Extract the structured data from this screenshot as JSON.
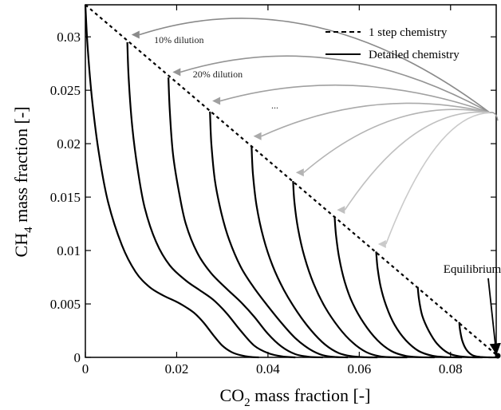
{
  "chart_data": {
    "type": "line",
    "xlabel": {
      "main": "CO",
      "sub": "2",
      "rest": " mass fraction [-]"
    },
    "ylabel": {
      "main": "CH",
      "sub": "4",
      "rest": " mass fraction [-]"
    },
    "xlim": [
      0,
      0.09
    ],
    "ylim": [
      0,
      0.033
    ],
    "xticks": [
      0,
      0.02,
      0.04,
      0.06,
      0.08
    ],
    "xtick_labels": [
      "0",
      "0.02",
      "0.04",
      "0.06",
      "0.08"
    ],
    "yticks": [
      0,
      0.005,
      0.01,
      0.015,
      0.02,
      0.025,
      0.03
    ],
    "ytick_labels": [
      "0",
      "0.005",
      "0.01",
      "0.015",
      "0.02",
      "0.025",
      "0.03"
    ],
    "grid": false,
    "legend": {
      "position": "top-right",
      "entries": [
        {
          "label": "1 step chemistry",
          "style": "dashed"
        },
        {
          "label": "Detailed chemistry",
          "style": "solid"
        }
      ]
    },
    "series": [
      {
        "style": "dashed",
        "x": [
          0,
          0.0907
        ],
        "y": [
          0.033,
          0
        ]
      },
      {
        "style": "solid",
        "x": [
          0,
          0.0005,
          0.0015,
          0.003,
          0.005,
          0.008,
          0.011,
          0.014,
          0.017,
          0.02,
          0.022,
          0.024,
          0.026,
          0.028,
          0.03,
          0.032,
          0.034,
          0.036,
          0.038
        ],
        "y": [
          0.033,
          0.029,
          0.024,
          0.019,
          0.0145,
          0.0105,
          0.008,
          0.0066,
          0.0058,
          0.0052,
          0.0047,
          0.0041,
          0.0032,
          0.0021,
          0.0011,
          0.0005,
          0.0002,
          5e-05,
          0
        ]
      },
      {
        "style": "solid",
        "x": [
          0.0092,
          0.0095,
          0.0103,
          0.0115,
          0.013,
          0.0155,
          0.0185,
          0.022,
          0.025,
          0.028,
          0.031,
          0.034,
          0.037,
          0.04,
          0.043,
          0.046
        ],
        "y": [
          0.0295,
          0.026,
          0.0215,
          0.0175,
          0.014,
          0.0108,
          0.0086,
          0.0072,
          0.0063,
          0.0054,
          0.0041,
          0.0025,
          0.0011,
          0.0004,
          0.0001,
          0
        ]
      },
      {
        "style": "solid",
        "x": [
          0.0182,
          0.0185,
          0.0192,
          0.0205,
          0.022,
          0.0245,
          0.0275,
          0.031,
          0.034,
          0.037,
          0.04,
          0.043,
          0.046,
          0.049,
          0.052
        ],
        "y": [
          0.0262,
          0.023,
          0.019,
          0.0155,
          0.0125,
          0.0098,
          0.0079,
          0.0064,
          0.0052,
          0.0038,
          0.0022,
          0.001,
          0.0003,
          5e-05,
          0
        ]
      },
      {
        "style": "solid",
        "x": [
          0.0273,
          0.0276,
          0.0284,
          0.0298,
          0.0315,
          0.034,
          0.0368,
          0.0398,
          0.043,
          0.046,
          0.049,
          0.052,
          0.055,
          0.0575
        ],
        "y": [
          0.023,
          0.02,
          0.0165,
          0.0135,
          0.011,
          0.0085,
          0.0066,
          0.0049,
          0.0032,
          0.0018,
          0.0008,
          0.0002,
          3e-05,
          0
        ]
      },
      {
        "style": "solid",
        "x": [
          0.0364,
          0.0367,
          0.0375,
          0.039,
          0.041,
          0.0435,
          0.0465,
          0.0495,
          0.0525,
          0.0555,
          0.0585,
          0.0615,
          0.064
        ],
        "y": [
          0.0198,
          0.0172,
          0.0142,
          0.0112,
          0.0086,
          0.0063,
          0.0042,
          0.0025,
          0.0012,
          0.0004,
          0.0001,
          1e-05,
          0
        ]
      },
      {
        "style": "solid",
        "x": [
          0.0455,
          0.0458,
          0.0466,
          0.048,
          0.05,
          0.0525,
          0.0555,
          0.0585,
          0.0615,
          0.0645,
          0.0675,
          0.0705
        ],
        "y": [
          0.0165,
          0.0145,
          0.012,
          0.0094,
          0.0069,
          0.0047,
          0.0028,
          0.0014,
          0.0005,
          0.0001,
          1e-05,
          0
        ]
      },
      {
        "style": "solid",
        "x": [
          0.0546,
          0.0549,
          0.0556,
          0.0568,
          0.0585,
          0.061,
          0.064,
          0.067,
          0.07,
          0.073,
          0.0765
        ],
        "y": [
          0.0132,
          0.0115,
          0.0093,
          0.0071,
          0.0051,
          0.0032,
          0.0016,
          0.0006,
          0.00015,
          2e-05,
          0
        ]
      },
      {
        "style": "solid",
        "x": [
          0.0637,
          0.064,
          0.0647,
          0.066,
          0.0678,
          0.0702,
          0.073,
          0.076,
          0.079,
          0.0825
        ],
        "y": [
          0.0099,
          0.0084,
          0.0066,
          0.0047,
          0.003,
          0.0016,
          0.0006,
          0.00015,
          2e-05,
          0
        ]
      },
      {
        "style": "solid",
        "x": [
          0.0728,
          0.0731,
          0.0738,
          0.0752,
          0.077,
          0.0795,
          0.082,
          0.0845,
          0.087
        ],
        "y": [
          0.0066,
          0.0054,
          0.0039,
          0.0025,
          0.0013,
          0.0004,
          0.0001,
          1e-05,
          0
        ]
      },
      {
        "style": "solid",
        "x": [
          0.0819,
          0.0821,
          0.0826,
          0.0835,
          0.0848,
          0.0865,
          0.0885,
          0.0905
        ],
        "y": [
          0.0033,
          0.0025,
          0.0015,
          0.0007,
          0.0002,
          4e-05,
          0,
          0
        ]
      }
    ],
    "annotations": {
      "labels": [
        {
          "text": "10% dilution",
          "x": 0.0205,
          "y": 0.0294
        },
        {
          "text": "20% dilution",
          "x": 0.029,
          "y": 0.0262
        },
        {
          "text": "...",
          "x": 0.0415,
          "y": 0.0233
        }
      ],
      "equilibrium_label": "Equilibrium",
      "equilibrium_label_pos": {
        "x": 0.0865,
        "y": 0.0083
      },
      "equilibrium_point": {
        "x": 0.0907,
        "y": 0
      },
      "hub": {
        "x": 0.0886,
        "y": 0.0229
      },
      "arrow_targets": [
        {
          "x": 0.0108,
          "y": 0.0302
        },
        {
          "x": 0.0198,
          "y": 0.0267
        },
        {
          "x": 0.0285,
          "y": 0.024
        },
        {
          "x": 0.0375,
          "y": 0.0207
        },
        {
          "x": 0.0468,
          "y": 0.0173
        },
        {
          "x": 0.0558,
          "y": 0.0138
        },
        {
          "x": 0.0648,
          "y": 0.0106
        }
      ],
      "arrow_colors": [
        "#8a8a8a",
        "#949494",
        "#a0a0a0",
        "#aaaaaa",
        "#b4b4b4",
        "#c0c0c0",
        "#cacaca"
      ]
    }
  }
}
